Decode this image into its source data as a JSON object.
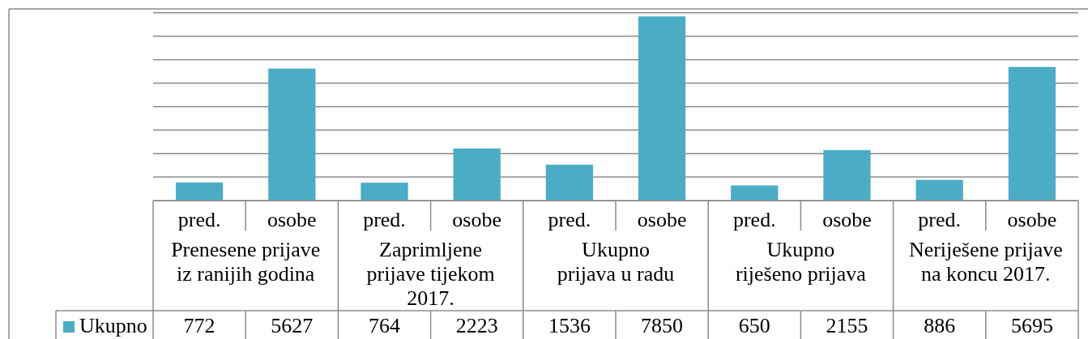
{
  "chart_data": {
    "type": "bar",
    "categories": [
      "pred.",
      "osobe",
      "pred.",
      "osobe",
      "pred.",
      "osobe",
      "pred.",
      "osobe",
      "pred.",
      "osobe"
    ],
    "series": [
      {
        "name": "Ukupno",
        "color": "#4bacc6",
        "values": [
          772,
          5627,
          764,
          2223,
          1536,
          7850,
          650,
          2155,
          886,
          5695
        ]
      }
    ],
    "ylim": [
      0,
      8000
    ],
    "yticks": [
      {
        "value": 0,
        "label": null
      },
      {
        "value": 1000,
        "label": null
      },
      {
        "value": 2000,
        "label": null
      },
      {
        "value": 3000,
        "label": null
      },
      {
        "value": 4000,
        "label": null
      },
      {
        "value": 5000,
        "label": null
      },
      {
        "value": 6000,
        "label": null
      },
      {
        "value": 7000,
        "label": null
      },
      {
        "value": 8000,
        "label": null
      }
    ],
    "grid": "y",
    "tick_labels": "x",
    "legend": "bottom",
    "data_labels": true,
    "annotations": [
      "Prenesene prijave\niz ranijih godina",
      "Zaprimljene\nprijave tijekom\n2017.",
      "Ukupno\nprijava u radu",
      "Ukupno\nriješeno prijava",
      "Neriješene prijave\nna koncu 2017."
    ]
  }
}
